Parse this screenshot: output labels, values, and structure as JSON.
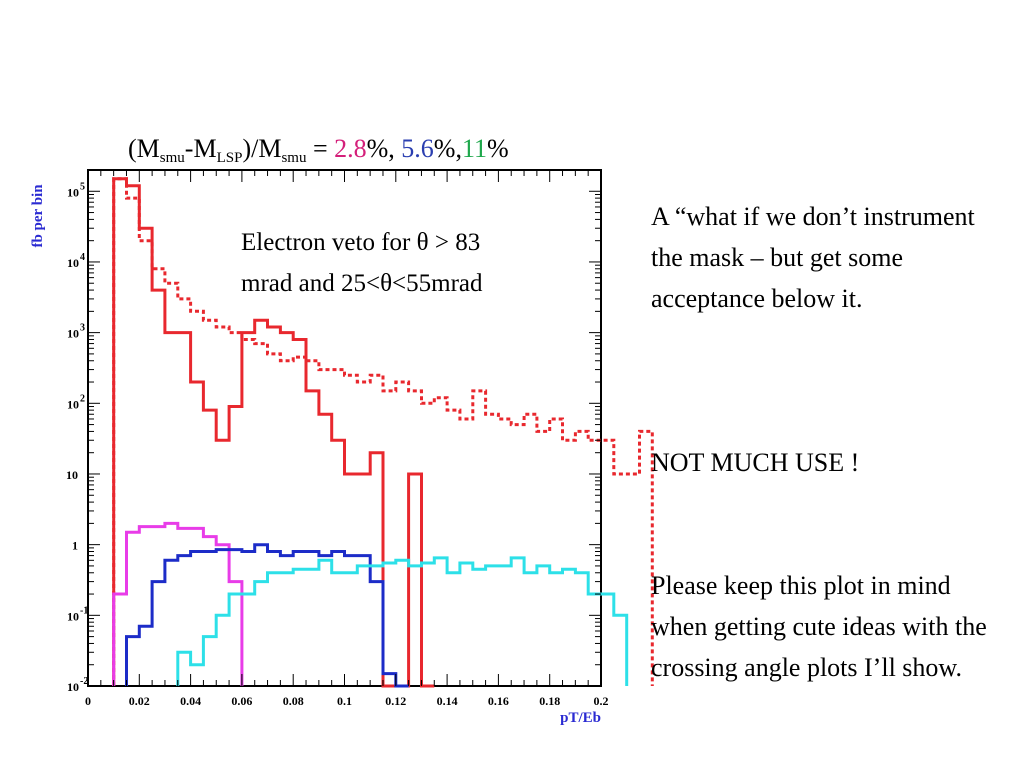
{
  "title": {
    "prefix": "(M",
    "sub1": "smu",
    "mid1": "-M",
    "sub2": "LSP",
    "mid2": ")/M",
    "sub3": "smu",
    "eq": " = ",
    "v1": "2.8",
    "s1": "%, ",
    "v2": "5.6",
    "s2": "%,",
    "v3": "11",
    "s3": "%"
  },
  "annotation": {
    "line1": "Electron veto for θ > 83",
    "line2": "mrad and 25<θ<55mrad"
  },
  "notes": {
    "note1": "A “what if we don’t instrument the mask – but get some acceptance below it.",
    "note2": "NOT MUCH USE !",
    "note3": "Please keep this plot in mind when getting cute ideas with the crossing angle plots I’ll show."
  },
  "colors": {
    "red": "#e8282e",
    "magenta": "#e83ce8",
    "blue": "#1c2cc8",
    "cyan": "#2de0e8",
    "title_red": "#d41f7a",
    "title_blue": "#2b3fb0",
    "title_green": "#1fa84c",
    "axis_label": "#2a2ad2"
  },
  "chart_data": {
    "type": "histogram",
    "xlabel": "pT/Eb",
    "ylabel": "fb per bin",
    "xlim": [
      0,
      0.2
    ],
    "ylim": [
      0.01,
      200000
    ],
    "yscale": "log",
    "x_ticks": [
      "0",
      "0.02",
      "0.04",
      "0.06",
      "0.08",
      "0.1",
      "0.12",
      "0.14",
      "0.16",
      "0.18",
      "0.2"
    ],
    "y_ticks": [
      {
        "base": "10",
        "exp": "5",
        "value": 100000
      },
      {
        "base": "10",
        "exp": "4",
        "value": 10000
      },
      {
        "base": "10",
        "exp": "3",
        "value": 1000
      },
      {
        "base": "10",
        "exp": "2",
        "value": 100
      },
      {
        "base": "10",
        "exp": "",
        "value": 10
      },
      {
        "base": "1",
        "exp": "",
        "value": 1
      },
      {
        "base": "10",
        "exp": "-1",
        "value": 0.1
      },
      {
        "base": "10",
        "exp": "-2",
        "value": 0.01
      }
    ],
    "bin_width": 0.005,
    "series": [
      {
        "color_key": "red",
        "style": "dashed",
        "x_start": 0.01,
        "values": [
          150000,
          80000,
          20000,
          8000,
          5000,
          3000,
          2000,
          1500,
          1200,
          1000,
          800,
          700,
          500,
          400,
          450,
          400,
          300,
          300,
          250,
          200,
          250,
          150,
          200,
          150,
          100,
          120,
          80,
          60,
          150,
          70,
          60,
          50,
          70,
          40,
          60,
          30,
          40,
          30,
          30,
          10,
          10,
          40
        ]
      },
      {
        "color_key": "red",
        "style": "solid",
        "x_start": 0.01,
        "values": [
          150000,
          120000,
          30000,
          4000,
          1000,
          1000,
          200,
          80,
          30,
          90,
          1000,
          1500,
          1200,
          1000,
          800,
          150,
          70,
          30,
          10,
          10,
          20,
          0.005,
          0.005,
          10,
          0.005
        ]
      },
      {
        "color_key": "magenta",
        "style": "solid",
        "x_start": 0.01,
        "values": [
          0.2,
          1.5,
          1.8,
          1.8,
          2.0,
          1.7,
          1.7,
          1.3,
          1.0,
          0.3
        ]
      },
      {
        "color_key": "blue",
        "style": "solid",
        "x_start": 0.015,
        "values": [
          0.05,
          0.07,
          0.3,
          0.6,
          0.7,
          0.8,
          0.8,
          0.85,
          0.85,
          0.8,
          1.0,
          0.8,
          0.7,
          0.8,
          0.8,
          0.7,
          0.8,
          0.7,
          0.7,
          0.3,
          0.015,
          0.01
        ]
      },
      {
        "color_key": "cyan",
        "style": "solid",
        "x_start": 0.035,
        "values": [
          0.03,
          0.02,
          0.05,
          0.1,
          0.2,
          0.2,
          0.3,
          0.4,
          0.4,
          0.45,
          0.45,
          0.6,
          0.4,
          0.4,
          0.5,
          0.5,
          0.55,
          0.6,
          0.5,
          0.55,
          0.65,
          0.4,
          0.55,
          0.45,
          0.5,
          0.5,
          0.65,
          0.4,
          0.5,
          0.4,
          0.45,
          0.4,
          0.2,
          0.2,
          0.1
        ]
      }
    ]
  }
}
